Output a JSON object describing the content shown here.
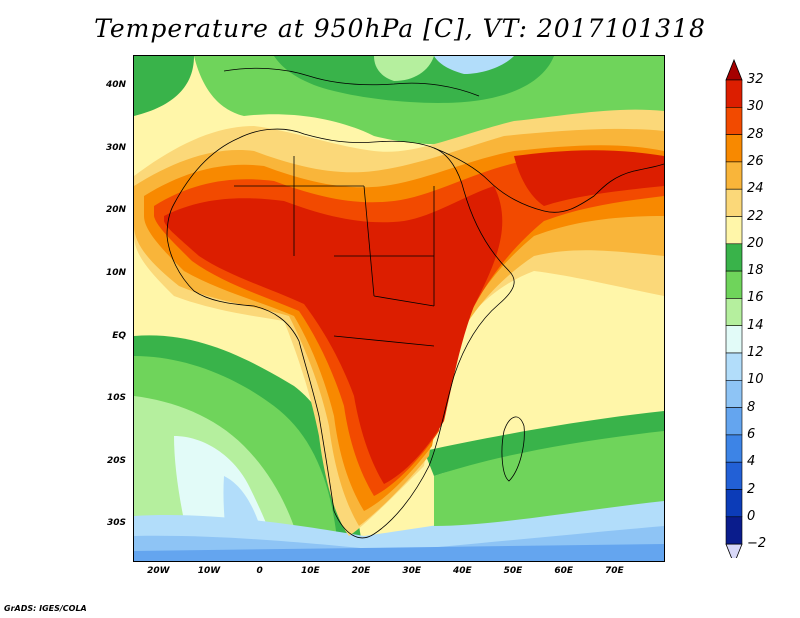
{
  "title": "Temperature at 950hPa [C], VT: 2017101318",
  "credit": "GrADS: IGES/COLA",
  "map": {
    "lon_range": [
      -25,
      80
    ],
    "lat_range": [
      -36,
      45
    ],
    "lat_labels": [
      {
        "text": "40N",
        "value": 40
      },
      {
        "text": "30N",
        "value": 30
      },
      {
        "text": "20N",
        "value": 20
      },
      {
        "text": "10N",
        "value": 10
      },
      {
        "text": "EQ",
        "value": 0
      },
      {
        "text": "10S",
        "value": -10
      },
      {
        "text": "20S",
        "value": -20
      },
      {
        "text": "30S",
        "value": -30
      }
    ],
    "lon_labels": [
      {
        "text": "20W",
        "value": -20
      },
      {
        "text": "10W",
        "value": -10
      },
      {
        "text": "0",
        "value": 0
      },
      {
        "text": "10E",
        "value": 10
      },
      {
        "text": "20E",
        "value": 20
      },
      {
        "text": "30E",
        "value": 30
      },
      {
        "text": "40E",
        "value": 40
      },
      {
        "text": "50E",
        "value": 50
      },
      {
        "text": "60E",
        "value": 60
      },
      {
        "text": "70E",
        "value": 70
      }
    ]
  },
  "colorbar": {
    "levels": [
      {
        "text": "32",
        "value": 32
      },
      {
        "text": "30",
        "value": 30
      },
      {
        "text": "28",
        "value": 28
      },
      {
        "text": "26",
        "value": 26
      },
      {
        "text": "24",
        "value": 24
      },
      {
        "text": "22",
        "value": 22
      },
      {
        "text": "20",
        "value": 20
      },
      {
        "text": "18",
        "value": 18
      },
      {
        "text": "16",
        "value": 16
      },
      {
        "text": "14",
        "value": 14
      },
      {
        "text": "12",
        "value": 12
      },
      {
        "text": "10",
        "value": 10
      },
      {
        "text": "8",
        "value": 8
      },
      {
        "text": "6",
        "value": 6
      },
      {
        "text": "4",
        "value": 4
      },
      {
        "text": "2",
        "value": 2
      },
      {
        "text": "0",
        "value": 0
      },
      {
        "text": "−2",
        "value": -2
      }
    ],
    "colors": {
      "above_32": "#a50000",
      "30_32": "#dc1e00",
      "28_30": "#f24a00",
      "26_28": "#f88900",
      "24_26": "#f9b53a",
      "22_24": "#fbd879",
      "20_22": "#fff6a9",
      "18_20": "#39b34a",
      "16_18": "#6fd45b",
      "14_16": "#b5ef9e",
      "12_14": "#e2fbf8",
      "10_12": "#b2ddfa",
      "8_10": "#8ec4f5",
      "6_8": "#64a5ef",
      "4_6": "#3d84e6",
      "2_4": "#2260d6",
      "0_2": "#0c3cb8",
      "neg2_0": "#0a1c8c",
      "below_neg2": "#d8d8f8"
    }
  }
}
